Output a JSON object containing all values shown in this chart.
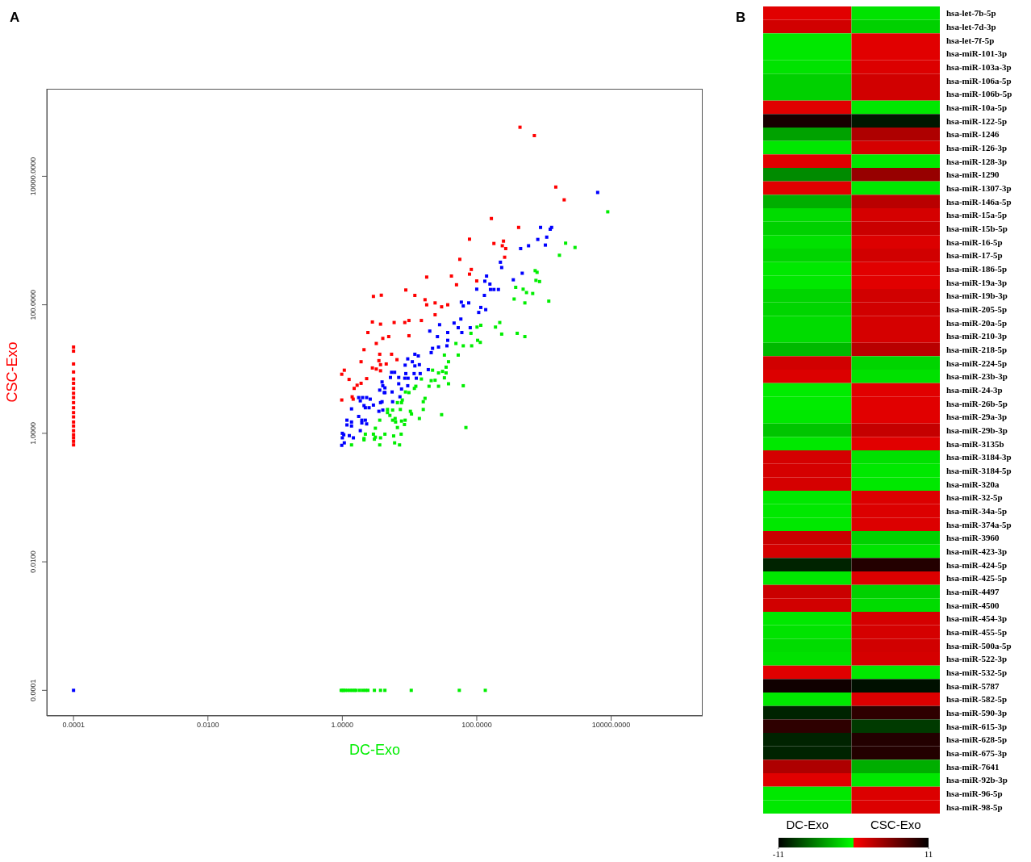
{
  "chart_data": [
    {
      "type": "scatter",
      "title": "A",
      "xlabel": "DC-Exo",
      "ylabel": "CSC-Exo",
      "log": "xy",
      "marker": "square",
      "xlim": [
        4e-05,
        230000
      ],
      "ylim": [
        4e-05,
        230000
      ],
      "xticks": [
        {
          "value": 0.0001,
          "label": "0.0001"
        },
        {
          "value": 0.01,
          "label": "0.0100"
        },
        {
          "value": 1,
          "label": "1.0000"
        },
        {
          "value": 100,
          "label": "100.0000"
        },
        {
          "value": 10000,
          "label": "10000.0000"
        }
      ],
      "yticks": [
        {
          "value": 0.0001,
          "label": "0.0001"
        },
        {
          "value": 0.01,
          "label": "0.0100"
        },
        {
          "value": 1,
          "label": "1.0000"
        },
        {
          "value": 100,
          "label": "100.0000"
        },
        {
          "value": 10000,
          "label": "10000.0000"
        }
      ],
      "series": [
        {
          "color": "#ff0000",
          "x": [
            440,
            720,
            1500,
            2000,
            165,
            420,
            78,
            180,
            250,
            240,
            270,
            260,
            56,
            83,
            78,
            100,
            42,
            18,
            50,
            8.8,
            2.9,
            3.8,
            12,
            17,
            18,
            24,
            30,
            37,
            24,
            2.8,
            3.7,
            5.9,
            8.5,
            9.8,
            15,
            2.4,
            9.8,
            4.0,
            4.9,
            3.2,
            2.1,
            3.6,
            5.4,
            6.5,
            3.5,
            1.9,
            4.5,
            3.7,
            2.8,
            3.2,
            3.7,
            1.07,
            0.98,
            1.26,
            2.3,
            1.9,
            1.66,
            1.5,
            1.4,
            1.45,
            0.98,
            0.0001,
            0.0001,
            0.0001,
            0.0001,
            0.0001,
            0.0001,
            0.0001,
            0.0001,
            0.0001,
            0.0001,
            0.0001,
            0.0001,
            0.0001,
            0.0001,
            0.0001,
            0.0001,
            0.0001,
            0.0001,
            0.0001,
            0.0001
          ],
          "values": [
            58000,
            43000,
            6800,
            4300,
            2200,
            1600,
            1050,
            900,
            980,
            830,
            750,
            550,
            510,
            355,
            300,
            235,
            280,
            270,
            205,
            170,
            135,
            141,
            140,
            120,
            100,
            107,
            93,
            100,
            70,
            54,
            50,
            53,
            53,
            57,
            57,
            37,
            33,
            30,
            32,
            25,
            20,
            17,
            17,
            14,
            13.5,
            13,
            12,
            11.7,
            10.4,
            10,
            9.4,
            9.6,
            8.3,
            6.9,
            7.1,
            6.0,
            5.6,
            5.0,
            3.7,
            3.4,
            3.3,
            22,
            19,
            12,
            9,
            7,
            6,
            5,
            4.2,
            3.6,
            3,
            2.5,
            2.1,
            1.8,
            1.5,
            1.3,
            1.1,
            0.95,
            0.85,
            0.75,
            0.66
          ]
        },
        {
          "color": "#0000ff",
          "x": [
            6300,
            890,
            1240,
            1300,
            1100,
            810,
            1050,
            590,
            450,
            225,
            235,
            475,
            350,
            140,
            132,
            157,
            100,
            160,
            180,
            210,
            130,
            59,
            76,
            63,
            115,
            136,
            107,
            58,
            46,
            28,
            53,
            80,
            20,
            37,
            60,
            26,
            37,
            22,
            27,
            36,
            21,
            9.4,
            12,
            13.5,
            11,
            8.6,
            12,
            14,
            19,
            5.4,
            6.0,
            8.8,
            11.7,
            14.4,
            5.2,
            6.9,
            8.5,
            9.5,
            12.6,
            3.9,
            6.9,
            9.4,
            4.0,
            4.3,
            3.6,
            4.2,
            4.3,
            5.5,
            7.6,
            7.2,
            1.75,
            2.0,
            2.3,
            2.6,
            1.85,
            2.9,
            2.1,
            2.2,
            2.5,
            3.9,
            5.6,
            3.7,
            1.37,
            3.5,
            4.0,
            1.75,
            1.17,
            1.37,
            1.17,
            1.37,
            1.95,
            2.2,
            1.95,
            2.3,
            1.85,
            1.0,
            1.05,
            1.0,
            1.27,
            1.46,
            1.07,
            0.98,
            0.0001
          ],
          "values": [
            5600,
            1600,
            1500,
            1600,
            1130,
            1040,
            850,
            830,
            750,
            460,
            380,
            310,
            245,
            280,
            233,
            210,
            175,
            173,
            173,
            173,
            140,
            110,
            107,
            96,
            91,
            84,
            76,
            60,
            52,
            49,
            44,
            44,
            39,
            37,
            37,
            32,
            28,
            21,
            22,
            23,
            18,
            14.4,
            17,
            16,
            13,
            11.5,
            11.2,
            11.7,
            9.8,
            8.9,
            8.9,
            8.5,
            8.5,
            8.5,
            7.4,
            7.4,
            7.2,
            7.2,
            7.2,
            6.3,
            5.9,
            5.5,
            5.5,
            5.1,
            4.7,
            4.3,
            4.3,
            4.4,
            4.9,
            3.7,
            3.6,
            3.6,
            3.6,
            3.4,
            3.2,
            2.75,
            2.7,
            2.5,
            2.5,
            3.1,
            3.1,
            3.0,
            2.4,
            2.2,
            2.3,
            1.83,
            1.6,
            1.5,
            1.35,
            1.3,
            1.6,
            1.6,
            1.45,
            1.4,
            1.1,
            1.0,
            0.95,
            0.85,
            0.92,
            0.85,
            0.71,
            0.65,
            0.0001
          ]
        },
        {
          "color": "#00ee00",
          "x": [
            8900,
            2100,
            2900,
            1700,
            740,
            790,
            760,
            860,
            380,
            490,
            550,
            680,
            360,
            520,
            1180,
            220,
            190,
            235,
            400,
            520,
            101,
            115,
            82,
            49,
            63,
            84,
            103,
            113,
            33,
            53,
            38,
            35,
            22,
            27,
            31,
            35,
            15,
            21,
            24,
            33,
            38,
            63,
            19.5,
            27,
            12.4,
            11.8,
            8.7,
            9.8,
            17,
            16,
            6.6,
            7.6,
            7.8,
            4.7,
            5.6,
            7.3,
            10.3,
            10.7,
            16,
            5.1,
            4.7,
            6.1,
            5.6,
            6.2,
            7.6,
            8.6,
            8.4,
            14,
            30,
            69,
            6.6,
            3.6,
            3.1,
            3.1,
            2.2,
            2.9,
            4.3,
            7.5,
            2.1,
            2.1,
            3.7,
            5.8,
            3.0,
            1.37,
            3.6,
            6.0,
            7.1,
            0.96,
            1.0,
            1.05,
            1.1,
            1.2,
            1.3,
            1.4,
            1.5,
            1.6,
            1.8,
            2.0,
            2.2,
            2.4,
            3.0,
            3.7,
            4.3,
            10.6,
            55,
            134
          ],
          "values": [
            2800,
            910,
            780,
            590,
            340,
            320,
            240,
            230,
            187,
            175,
            155,
            150,
            123,
            107,
            114,
            53,
            45,
            35,
            36,
            32,
            45,
            48,
            36,
            25,
            23,
            23,
            28,
            26,
            16.5,
            16.5,
            13,
            10.7,
            9.6,
            8.7,
            9.2,
            8.7,
            7.0,
            6.6,
            6.7,
            7.3,
            5.9,
            5.5,
            5.4,
            5.4,
            5.4,
            5.0,
            4.4,
            4.3,
            3.5,
            3.1,
            3.0,
            3.0,
            3.3,
            2.35,
            2.3,
            2.35,
            2.2,
            2.0,
            2.35,
            1.9,
            2.1,
            1.7,
            1.6,
            1.5,
            1.55,
            1.6,
            1.37,
            1.7,
            1.95,
            1.23,
            1.23,
            1.6,
            1.2,
            0.87,
            0.97,
            0.97,
            0.97,
            0.97,
            0.83,
            0.79,
            0.85,
            0.91,
            0.81,
            0.66,
            0.66,
            0.71,
            0.66,
            0.0001,
            0.0001,
            0.0001,
            0.0001,
            0.0001,
            0.0001,
            0.0001,
            0.0001,
            0.0001,
            0.0001,
            0.0001,
            0.0001,
            0.0001,
            0.0001,
            0.0001,
            0.0001,
            0.0001,
            0.0001,
            0.0001
          ]
        }
      ]
    },
    {
      "type": "heatmap",
      "title": "B",
      "categories": [
        "DC-Exo",
        "CSC-Exo"
      ],
      "y_categories": [
        "hsa-let-7b-5p",
        "hsa-let-7d-3p",
        "hsa-let-7f-5p",
        "hsa-miR-101-3p",
        "hsa-miR-103a-3p",
        "hsa-miR-106a-5p",
        "hsa-miR-106b-5p",
        "hsa-miR-10a-5p",
        "hsa-miR-122-5p",
        "hsa-miR-1246",
        "hsa-miR-126-3p",
        "hsa-miR-128-3p",
        "hsa-miR-1290",
        "hsa-miR-1307-3p",
        "hsa-miR-146a-5p",
        "hsa-miR-15a-5p",
        "hsa-miR-15b-5p",
        "hsa-miR-16-5p",
        "hsa-miR-17-5p",
        "hsa-miR-186-5p",
        "hsa-miR-19a-3p",
        "hsa-miR-19b-3p",
        "hsa-miR-205-5p",
        "hsa-miR-20a-5p",
        "hsa-miR-210-3p",
        "hsa-miR-218-5p",
        "hsa-miR-224-5p",
        "hsa-miR-23b-3p",
        "hsa-miR-24-3p",
        "hsa-miR-26b-5p",
        "hsa-miR-29a-3p",
        "hsa-miR-29b-3p",
        "hsa-miR-3135b",
        "hsa-miR-3184-3p",
        "hsa-miR-3184-5p",
        "hsa-miR-320a",
        "hsa-miR-32-5p",
        "hsa-miR-34a-5p",
        "hsa-miR-374a-5p",
        "hsa-miR-3960",
        "hsa-miR-423-3p",
        "hsa-miR-424-5p",
        "hsa-miR-425-5p",
        "hsa-miR-4497",
        "hsa-miR-4500",
        "hsa-miR-454-3p",
        "hsa-miR-455-5p",
        "hsa-miR-500a-5p",
        "hsa-miR-522-3p",
        "hsa-miR-532-5p",
        "hsa-miR-5787",
        "hsa-miR-582-5p",
        "hsa-miR-590-3p",
        "hsa-miR-615-3p",
        "hsa-miR-628-5p",
        "hsa-miR-675-3p",
        "hsa-miR-7641",
        "hsa-miR-92b-3p",
        "hsa-miR-96-5p",
        "hsa-miR-98-5p"
      ],
      "cells": [
        [
          1.3,
          -1.2
        ],
        [
          2,
          -2
        ],
        [
          -1.0,
          1.3
        ],
        [
          -1.0,
          1.3
        ],
        [
          -1.2,
          1.5
        ],
        [
          -2,
          2
        ],
        [
          -2,
          2
        ],
        [
          1.3,
          -1.0
        ],
        [
          10,
          -10
        ],
        [
          -4,
          3.5
        ],
        [
          -1.0,
          1.8
        ],
        [
          1.3,
          -1.0
        ],
        [
          -5,
          4.5
        ],
        [
          1.3,
          -1.0
        ],
        [
          -3.5,
          3
        ],
        [
          -1.5,
          1.8
        ],
        [
          -2,
          2.3
        ],
        [
          -1.3,
          1.5
        ],
        [
          -1.8,
          2
        ],
        [
          -1.0,
          1.3
        ],
        [
          -1.0,
          1.3
        ],
        [
          -1.8,
          2
        ],
        [
          -1.8,
          2
        ],
        [
          -1.5,
          1.8
        ],
        [
          -1.5,
          1.8
        ],
        [
          -3,
          3
        ],
        [
          2,
          -1.8
        ],
        [
          1.5,
          -1.3
        ],
        [
          -0.8,
          1.3
        ],
        [
          -0.8,
          1.3
        ],
        [
          -1.0,
          1.3
        ],
        [
          -2.5,
          2.5
        ],
        [
          -1.0,
          1.3
        ],
        [
          1.8,
          -1.3
        ],
        [
          1.8,
          -1.0
        ],
        [
          1.8,
          -1.0
        ],
        [
          -1.0,
          1.5
        ],
        [
          -1.0,
          1.5
        ],
        [
          -1.0,
          1.5
        ],
        [
          2.3,
          -2
        ],
        [
          1.8,
          -1.2
        ],
        [
          -9.5,
          9.5
        ],
        [
          -1.0,
          1.5
        ],
        [
          2.3,
          -2
        ],
        [
          2,
          -1.5
        ],
        [
          -1.0,
          1.8
        ],
        [
          -1.2,
          1.8
        ],
        [
          -1.5,
          2
        ],
        [
          -1.3,
          1.8
        ],
        [
          1.3,
          -1.0
        ],
        [
          10.3,
          -10.3
        ],
        [
          -1.0,
          1.5
        ],
        [
          -9.5,
          9
        ],
        [
          9,
          -8.5
        ],
        [
          -9.5,
          9.5
        ],
        [
          -9.5,
          9.5
        ],
        [
          3.5,
          -3.5
        ],
        [
          1.3,
          -1.0
        ],
        [
          -1.0,
          1.5
        ],
        [
          -1.0,
          1.5
        ]
      ],
      "clim": [
        -11,
        11
      ],
      "cticks": [
        -11,
        11
      ]
    }
  ]
}
